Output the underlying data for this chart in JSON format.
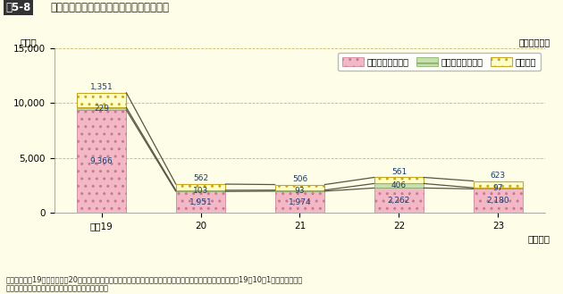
{
  "title_prefix": "図5-8",
  "title_main": "　公務災害及び通勤災害の認定件数の推移",
  "unit_label": "（単位：件）",
  "ylabel": "（件）",
  "xlabel_suffix": "（年度）",
  "years": [
    "平成19",
    "20",
    "21",
    "22",
    "23"
  ],
  "injury": [
    9366,
    1951,
    1974,
    2262,
    2180
  ],
  "disease": [
    229,
    103,
    93,
    406,
    97
  ],
  "commute": [
    1351,
    562,
    506,
    561,
    623
  ],
  "ylim": [
    0,
    15000
  ],
  "yticks": [
    0,
    5000,
    10000,
    15000
  ],
  "bg_color": "#FEFEE8",
  "plot_bg_color": "#FEFEE8",
  "injury_facecolor": "#F2B8C6",
  "disease_facecolor": "#C8DDB0",
  "commute_facecolor": "#FEFEC8",
  "injury_edgecolor": "#C87890",
  "disease_edgecolor": "#78A858",
  "commute_edgecolor": "#C8A820",
  "line_color_top": "#666644",
  "line_color_mid": "#446644",
  "line_color_bot": "#886644",
  "grid_color": "#C8B870",
  "label_color": "#1a3c6e",
  "note_line1": "（注）　平成19年度から平成20年度にかけて認定件数が著しく減少しているのは、日本郵政公社の民営化（平成19年10月1日）により、補",
  "note_line2": "　　　償法適用対象職員数が減少したためである。",
  "legend_labels": [
    "公務災害（負傷）",
    "公務災害（疾病）",
    "通勤災害"
  ]
}
